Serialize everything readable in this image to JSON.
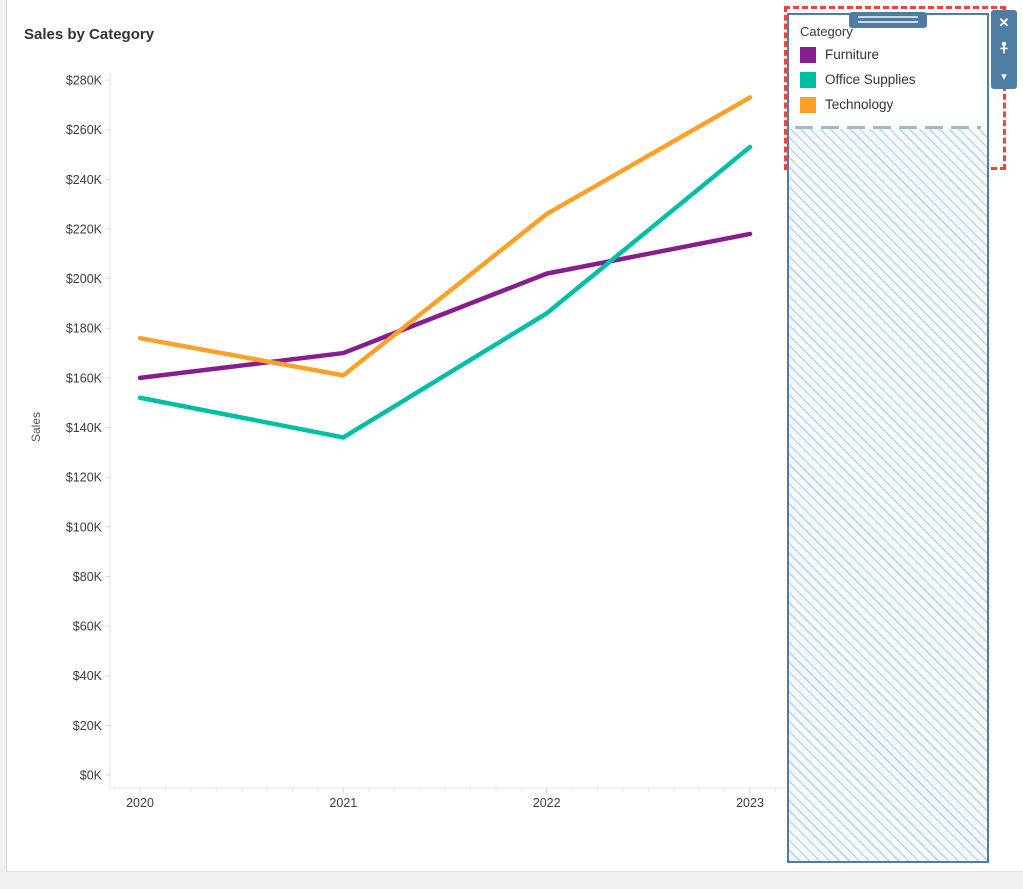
{
  "window": {
    "background": "#f0f0f0",
    "canvas_background": "#ffffff"
  },
  "chart": {
    "title": "Sales by Category",
    "ylabel": "Sales"
  },
  "chart_data": {
    "type": "line",
    "title": "Sales by Category",
    "x": [
      "2020",
      "2021",
      "2022",
      "2023"
    ],
    "series": [
      {
        "name": "Furniture",
        "color": "#871d8f",
        "values": [
          160000,
          170000,
          202000,
          218000
        ]
      },
      {
        "name": "Office Supplies",
        "color": "#00bfa5",
        "values": [
          152000,
          136000,
          186000,
          253000
        ]
      },
      {
        "name": "Technology",
        "color": "#fba129",
        "values": [
          176000,
          161000,
          226000,
          273000
        ]
      }
    ],
    "ylabel": "Sales",
    "ylim": [
      0,
      280000
    ],
    "ytick_step": 20000,
    "ytick_labels": [
      "$0K",
      "$20K",
      "$40K",
      "$60K",
      "$80K",
      "$100K",
      "$120K",
      "$140K",
      "$160K",
      "$180K",
      "$200K",
      "$220K",
      "$240K",
      "$260K",
      "$280K"
    ],
    "xtick_labels": [
      "2020",
      "2021",
      "2022",
      "2023"
    ],
    "legend_position": "floating-top-right",
    "grid": false
  },
  "legend_card": {
    "header": "Category",
    "items": [
      {
        "label": "Furniture",
        "color": "#871d8f"
      },
      {
        "label": "Office Supplies",
        "color": "#00bfa5"
      },
      {
        "label": "Technology",
        "color": "#fba129"
      }
    ],
    "toolbar": {
      "close_glyph": "✕",
      "caret_glyph": "▾"
    },
    "colors": {
      "accent": "#4f7ca1",
      "drop_target_red": "#ef4438",
      "separator": "#9db9d0",
      "hatch_line": "#c3d6e8",
      "hatch_bg": "#f6f9fc"
    }
  }
}
